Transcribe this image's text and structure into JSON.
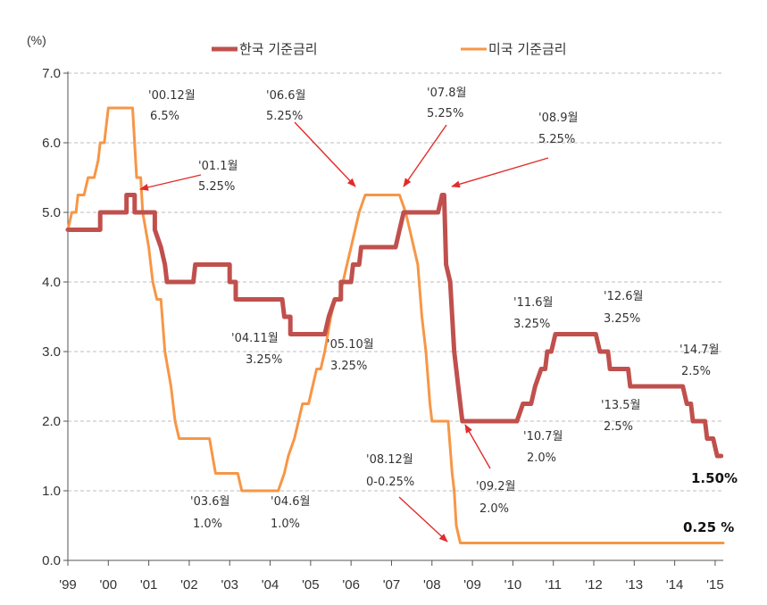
{
  "chart_data": {
    "type": "line",
    "unit_label": "(%)",
    "ylim": [
      0,
      7
    ],
    "y_ticks": [
      "0.0",
      "1.0",
      "2.0",
      "3.0",
      "4.0",
      "5.0",
      "6.0",
      "7.0"
    ],
    "xlim": [
      1999.0,
      2015.2
    ],
    "x_ticks": [
      {
        "x": 1999,
        "label": "'99"
      },
      {
        "x": 2000,
        "label": "'00"
      },
      {
        "x": 2001,
        "label": "'01"
      },
      {
        "x": 2002,
        "label": "'02"
      },
      {
        "x": 2003,
        "label": "'03"
      },
      {
        "x": 2004,
        "label": "'04"
      },
      {
        "x": 2005,
        "label": "'05"
      },
      {
        "x": 2006,
        "label": "'06"
      },
      {
        "x": 2007,
        "label": "'07"
      },
      {
        "x": 2008,
        "label": "'08"
      },
      {
        "x": 2009,
        "label": "'09"
      },
      {
        "x": 2010,
        "label": "'10"
      },
      {
        "x": 2011,
        "label": "'11"
      },
      {
        "x": 2012,
        "label": "'12"
      },
      {
        "x": 2013,
        "label": "'13"
      },
      {
        "x": 2014,
        "label": "'14"
      },
      {
        "x": 2015,
        "label": "'15"
      }
    ],
    "grid": "horizontal-dashed",
    "legend_position": "top",
    "series": [
      {
        "name": "한국 기준금리",
        "color": "#c0504d",
        "points": [
          [
            1999.0,
            4.75
          ],
          [
            1999.8,
            4.75
          ],
          [
            1999.8,
            5.0
          ],
          [
            2000.35,
            5.0
          ],
          [
            2000.45,
            5.0
          ],
          [
            2000.45,
            5.25
          ],
          [
            2000.65,
            5.25
          ],
          [
            2000.65,
            5.0
          ],
          [
            2001.15,
            5.0
          ],
          [
            2001.15,
            4.75
          ],
          [
            2001.3,
            4.5
          ],
          [
            2001.4,
            4.25
          ],
          [
            2001.45,
            4.0
          ],
          [
            2002.1,
            4.0
          ],
          [
            2002.15,
            4.25
          ],
          [
            2003.0,
            4.25
          ],
          [
            2003.0,
            4.0
          ],
          [
            2003.15,
            4.0
          ],
          [
            2003.15,
            3.75
          ],
          [
            2004.3,
            3.75
          ],
          [
            2004.35,
            3.5
          ],
          [
            2004.5,
            3.5
          ],
          [
            2004.5,
            3.25
          ],
          [
            2005.35,
            3.25
          ],
          [
            2005.45,
            3.5
          ],
          [
            2005.6,
            3.75
          ],
          [
            2005.75,
            3.75
          ],
          [
            2005.75,
            4.0
          ],
          [
            2006.0,
            4.0
          ],
          [
            2006.05,
            4.25
          ],
          [
            2006.2,
            4.25
          ],
          [
            2006.25,
            4.5
          ],
          [
            2007.1,
            4.5
          ],
          [
            2007.2,
            4.75
          ],
          [
            2007.3,
            5.0
          ],
          [
            2008.15,
            5.0
          ],
          [
            2008.25,
            5.25
          ],
          [
            2008.3,
            5.25
          ],
          [
            2008.35,
            4.25
          ],
          [
            2008.45,
            4.0
          ],
          [
            2008.55,
            3.0
          ],
          [
            2008.65,
            2.5
          ],
          [
            2008.75,
            2.0
          ],
          [
            2010.1,
            2.0
          ],
          [
            2010.25,
            2.25
          ],
          [
            2010.45,
            2.25
          ],
          [
            2010.55,
            2.5
          ],
          [
            2010.7,
            2.75
          ],
          [
            2010.8,
            2.75
          ],
          [
            2010.85,
            3.0
          ],
          [
            2010.95,
            3.0
          ],
          [
            2011.05,
            3.25
          ],
          [
            2012.05,
            3.25
          ],
          [
            2012.15,
            3.0
          ],
          [
            2012.35,
            3.0
          ],
          [
            2012.4,
            2.75
          ],
          [
            2012.85,
            2.75
          ],
          [
            2012.9,
            2.5
          ],
          [
            2014.2,
            2.5
          ],
          [
            2014.3,
            2.25
          ],
          [
            2014.4,
            2.25
          ],
          [
            2014.45,
            2.0
          ],
          [
            2014.75,
            2.0
          ],
          [
            2014.8,
            1.75
          ],
          [
            2014.95,
            1.75
          ],
          [
            2015.05,
            1.5
          ],
          [
            2015.15,
            1.5
          ]
        ]
      },
      {
        "name": "미국 기준금리",
        "color": "#f79646",
        "points": [
          [
            1999.0,
            4.75
          ],
          [
            1999.1,
            5.0
          ],
          [
            1999.2,
            5.0
          ],
          [
            1999.25,
            5.25
          ],
          [
            1999.4,
            5.25
          ],
          [
            1999.5,
            5.5
          ],
          [
            1999.65,
            5.5
          ],
          [
            1999.75,
            5.75
          ],
          [
            1999.8,
            6.0
          ],
          [
            1999.9,
            6.0
          ],
          [
            2000.0,
            6.5
          ],
          [
            2000.6,
            6.5
          ],
          [
            2000.7,
            5.5
          ],
          [
            2000.8,
            5.5
          ],
          [
            2000.85,
            5.0
          ],
          [
            2001.0,
            4.5
          ],
          [
            2001.1,
            4.0
          ],
          [
            2001.2,
            3.75
          ],
          [
            2001.3,
            3.75
          ],
          [
            2001.4,
            3.0
          ],
          [
            2001.55,
            2.5
          ],
          [
            2001.65,
            2.0
          ],
          [
            2001.75,
            1.75
          ],
          [
            2002.5,
            1.75
          ],
          [
            2002.65,
            1.25
          ],
          [
            2003.2,
            1.25
          ],
          [
            2003.3,
            1.0
          ],
          [
            2004.2,
            1.0
          ],
          [
            2004.35,
            1.25
          ],
          [
            2004.45,
            1.5
          ],
          [
            2004.6,
            1.75
          ],
          [
            2004.7,
            2.0
          ],
          [
            2004.8,
            2.25
          ],
          [
            2004.95,
            2.25
          ],
          [
            2005.05,
            2.5
          ],
          [
            2005.15,
            2.75
          ],
          [
            2005.25,
            2.75
          ],
          [
            2005.35,
            3.0
          ],
          [
            2005.5,
            3.5
          ],
          [
            2005.6,
            3.75
          ],
          [
            2005.7,
            3.75
          ],
          [
            2005.8,
            4.0
          ],
          [
            2005.9,
            4.25
          ],
          [
            2006.0,
            4.5
          ],
          [
            2006.1,
            4.75
          ],
          [
            2006.2,
            5.0
          ],
          [
            2006.35,
            5.25
          ],
          [
            2007.2,
            5.25
          ],
          [
            2007.35,
            5.0
          ],
          [
            2007.45,
            4.75
          ],
          [
            2007.55,
            4.5
          ],
          [
            2007.65,
            4.25
          ],
          [
            2007.75,
            3.5
          ],
          [
            2007.85,
            3.0
          ],
          [
            2007.95,
            2.25
          ],
          [
            2008.0,
            2.0
          ],
          [
            2008.4,
            2.0
          ],
          [
            2008.5,
            1.25
          ],
          [
            2008.55,
            1.0
          ],
          [
            2008.6,
            0.5
          ],
          [
            2008.7,
            0.25
          ],
          [
            2015.2,
            0.25
          ]
        ]
      }
    ],
    "annotations": [
      {
        "id": "a0012",
        "line1": "'00.12월",
        "line2": "6.5%"
      },
      {
        "id": "a011",
        "line1": "'01.1월",
        "line2": "5.25%"
      },
      {
        "id": "a066",
        "line1": "'06.6월",
        "line2": "5.25%"
      },
      {
        "id": "a078",
        "line1": "'07.8월",
        "line2": "5.25%"
      },
      {
        "id": "a089",
        "line1": "'08.9월",
        "line2": "5.25%"
      },
      {
        "id": "a036",
        "line1": "'03.6월",
        "line2": "1.0%"
      },
      {
        "id": "a046",
        "line1": "'04.6월",
        "line2": "1.0%"
      },
      {
        "id": "a0411",
        "line1": "'04.11월",
        "line2": "3.25%"
      },
      {
        "id": "a0510",
        "line1": "'05.10월",
        "line2": "3.25%"
      },
      {
        "id": "a0812",
        "line1": "'08.12월",
        "line2": "0-0.25%"
      },
      {
        "id": "a092",
        "line1": "'09.2월",
        "line2": "2.0%"
      },
      {
        "id": "a107",
        "line1": "'10.7월",
        "line2": "2.0%"
      },
      {
        "id": "a116",
        "line1": "'11.6월",
        "line2": "3.25%"
      },
      {
        "id": "a126",
        "line1": "'12.6월",
        "line2": "3.25%"
      },
      {
        "id": "a135",
        "line1": "'13.5월",
        "line2": "2.5%"
      },
      {
        "id": "a147",
        "line1": "'14.7월",
        "line2": "2.5%"
      }
    ],
    "end_labels": {
      "korea": "1.50%",
      "us": "0.25 %"
    }
  }
}
